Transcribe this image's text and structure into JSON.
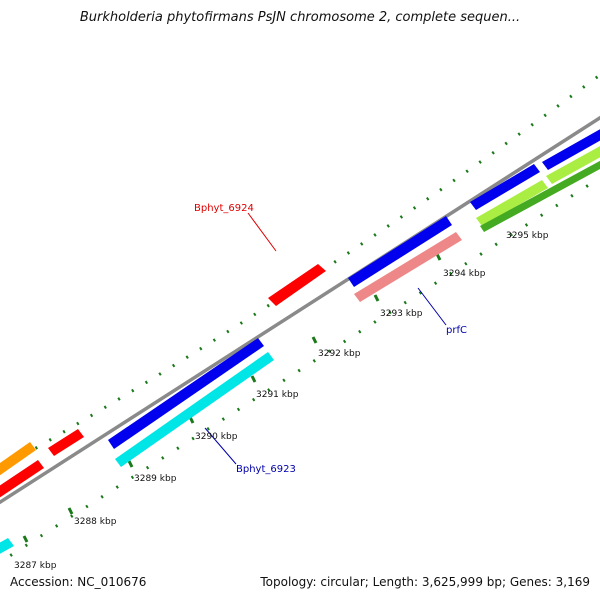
{
  "title": "Burkholderia phytofirmans PsJN chromosome 2, complete sequen...",
  "footer": {
    "accession": "Accession: NC_010676",
    "topology": "Topology: circular; Length: 3,625,999 bp; Genes: 3,169"
  },
  "ticks": [
    {
      "label": "3287 kbp"
    },
    {
      "label": "3288 kbp"
    },
    {
      "label": "3289 kbp"
    },
    {
      "label": "3290 kbp"
    },
    {
      "label": "3291 kbp"
    },
    {
      "label": "3292 kbp"
    },
    {
      "label": "3293 kbp"
    },
    {
      "label": "3294 kbp"
    },
    {
      "label": "3295 kbp"
    }
  ],
  "gene_labels": [
    {
      "name": "Bphyt_6924",
      "color": "#dd0000"
    },
    {
      "name": "prfC",
      "color": "#0000aa"
    },
    {
      "name": "Bphyt_6923",
      "color": "#0000aa"
    }
  ],
  "colors": {
    "backbone": "#8a8a8a",
    "tick": "#1a7a1a",
    "blue": "#0000ee",
    "cyan": "#00e5e5",
    "red": "#ff0000",
    "pink": "#ee8888",
    "orange": "#ff9900",
    "lightgreen": "#aaee44",
    "darkgreen": "#44aa22"
  }
}
